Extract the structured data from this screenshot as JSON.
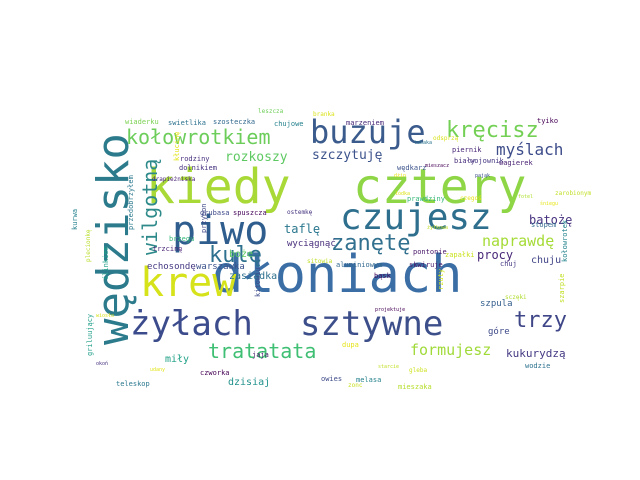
{
  "words": [
    {
      "text": "dłoniach",
      "color": "#3a6ea5"
    },
    {
      "text": "kiedy",
      "color": "#a8d936"
    },
    {
      "text": "cztery",
      "color": "#8ed645"
    },
    {
      "text": "wędzisko",
      "color": "#2c7b8c"
    },
    {
      "text": "krew",
      "color": "#d6e21a"
    },
    {
      "text": "żyłach",
      "color": "#3b4b8c"
    },
    {
      "text": "sztywne",
      "color": "#3d4f8a"
    },
    {
      "text": "piwo",
      "color": "#2f5e8e"
    },
    {
      "text": "czujesz",
      "color": "#2e6f8e"
    },
    {
      "text": "buzuje",
      "color": "#3a5b8c"
    },
    {
      "text": "tratatata",
      "color": "#3fbf73"
    },
    {
      "text": "kołowrotkiem",
      "color": "#6ccd5a"
    },
    {
      "text": "kręcisz",
      "color": "#73d055"
    },
    {
      "text": "wilgotną",
      "color": "#2e8a8a"
    },
    {
      "text": "trzy",
      "color": "#3f4788"
    },
    {
      "text": "zanętę",
      "color": "#31708e"
    },
    {
      "text": "kulę",
      "color": "#2d718e"
    },
    {
      "text": "myślach",
      "color": "#3d4c8a"
    },
    {
      "text": "formujesz",
      "color": "#a0da39"
    },
    {
      "text": "naprawdę",
      "color": "#a5db36"
    },
    {
      "text": "rozkoszy",
      "color": "#5ec962"
    },
    {
      "text": "szczytuję",
      "color": "#3b528b"
    },
    {
      "text": "kukurydzą",
      "color": "#443a83"
    },
    {
      "text": "procy",
      "color": "#482878"
    },
    {
      "text": "batożę",
      "color": "#46327e"
    },
    {
      "text": "taflę",
      "color": "#2a778e"
    },
    {
      "text": "dzisiaj",
      "color": "#21918c"
    },
    {
      "text": "zasiadka",
      "color": "#2d708e"
    },
    {
      "text": "miły",
      "color": "#1fa187"
    },
    {
      "text": "chuju",
      "color": "#414487"
    },
    {
      "text": "boże",
      "color": "#5ec962"
    },
    {
      "text": "echosondę",
      "color": "#443983"
    },
    {
      "text": "warszawka",
      "color": "#3b528b"
    },
    {
      "text": "wyciągnąć",
      "color": "#472d7b"
    },
    {
      "text": "góre",
      "color": "#3e4989"
    },
    {
      "text": "szpula",
      "color": "#355f8d"
    },
    {
      "text": "aluminiowym",
      "color": "#31688e"
    },
    {
      "text": "pontonie",
      "color": "#48186a"
    },
    {
      "text": "czworka",
      "color": "#440154"
    },
    {
      "text": "teleskop",
      "color": "#2a788e"
    },
    {
      "text": "trzcinę",
      "color": "#482475"
    },
    {
      "text": "wiaderku",
      "color": "#7ad151"
    },
    {
      "text": "swietlika",
      "color": "#2c728e"
    },
    {
      "text": "szosteczka",
      "color": "#31688e"
    },
    {
      "text": "chujowe",
      "color": "#26828e"
    },
    {
      "text": "marzeniem",
      "color": "#482878"
    },
    {
      "text": "tyiko",
      "color": "#440154"
    },
    {
      "text": "rodziny",
      "color": "#472f7d"
    },
    {
      "text": "dolnikiem",
      "color": "#46307e"
    },
    {
      "text": "grubasa",
      "color": "#3e4989"
    },
    {
      "text": "spuszcza",
      "color": "#450559"
    },
    {
      "text": "wędkarz",
      "color": "#3b528b"
    },
    {
      "text": "piernik",
      "color": "#482677"
    },
    {
      "text": "biały",
      "color": "#472d7b"
    },
    {
      "text": "wojownik",
      "color": "#453781"
    },
    {
      "text": "wagierek",
      "color": "#482173"
    },
    {
      "text": "przedobrzyłem",
      "color": "#2a788e"
    },
    {
      "text": "kurwa",
      "color": "#26828e"
    },
    {
      "text": "griluujący",
      "color": "#1f9e89"
    },
    {
      "text": "kołowrotek",
      "color": "#25848e"
    },
    {
      "text": "ślinkiem",
      "color": "#1fa088"
    },
    {
      "text": "owies",
      "color": "#3e4a89"
    },
    {
      "text": "wodzie",
      "color": "#2c718e"
    },
    {
      "text": "szarpie",
      "color": "#c2df23"
    },
    {
      "text": "jaja",
      "color": "#481769"
    },
    {
      "text": "brzegu",
      "color": "#35b779"
    },
    {
      "text": "prawdziny",
      "color": "#35b779"
    },
    {
      "text": "ostemkę",
      "color": "#46337f"
    },
    {
      "text": "mieszaka",
      "color": "#b5de2b"
    },
    {
      "text": "zapałki",
      "color": "#cae11f"
    },
    {
      "text": "stopem",
      "color": "#31688e"
    },
    {
      "text": "dupa",
      "color": "#e5e419"
    },
    {
      "text": "chuj",
      "color": "#453882"
    },
    {
      "text": "rzuty",
      "color": "#d2e21b"
    },
    {
      "text": "kitowiu",
      "color": "#3e4c8a"
    },
    {
      "text": "skwiruje",
      "color": "#48186a"
    },
    {
      "text": "bąsk",
      "color": "#46085c"
    },
    {
      "text": "melasa",
      "color": "#26828e"
    },
    {
      "text": "gleba",
      "color": "#cde11d"
    },
    {
      "text": "przypon",
      "color": "#3f4788"
    },
    {
      "text": "kłucinę",
      "color": "#e2e418"
    },
    {
      "text": "plecionkę",
      "color": "#b8de29"
    },
    {
      "text": "odsprzą",
      "color": "#d8e219"
    },
    {
      "text": "branka",
      "color": "#dae319"
    },
    {
      "text": "leszcza",
      "color": "#6ece58"
    },
    {
      "text": "drapieżniska",
      "color": "#482475"
    },
    {
      "text": "projektuje",
      "color": "#440154"
    },
    {
      "text": "zonc",
      "color": "#c8e020"
    },
    {
      "text": "sitowia",
      "color": "#bddf26"
    },
    {
      "text": "czegoś",
      "color": "#e7e419"
    },
    {
      "text": "zarobionym",
      "color": "#c0df25"
    },
    {
      "text": "sczęki",
      "color": "#b0dd2f"
    },
    {
      "text": "tabaka",
      "color": "#2b748e"
    },
    {
      "text": "mieszacz",
      "color": "#440154"
    },
    {
      "text": "pająk",
      "color": "#3b518b"
    },
    {
      "text": "dżin",
      "color": "#e8e419"
    },
    {
      "text": "żyłkowa",
      "color": "#bfdf25"
    },
    {
      "text": "okoń",
      "color": "#46307e"
    },
    {
      "text": "udany",
      "color": "#e3e418"
    },
    {
      "text": "starcie",
      "color": "#c2df23"
    },
    {
      "text": "fotel",
      "color": "#ade02b"
    },
    {
      "text": "śniegu",
      "color": "#e5e419"
    },
    {
      "text": "łódka",
      "color": "#dde318"
    },
    {
      "text": "wiosło",
      "color": "#d5e21a"
    }
  ]
}
